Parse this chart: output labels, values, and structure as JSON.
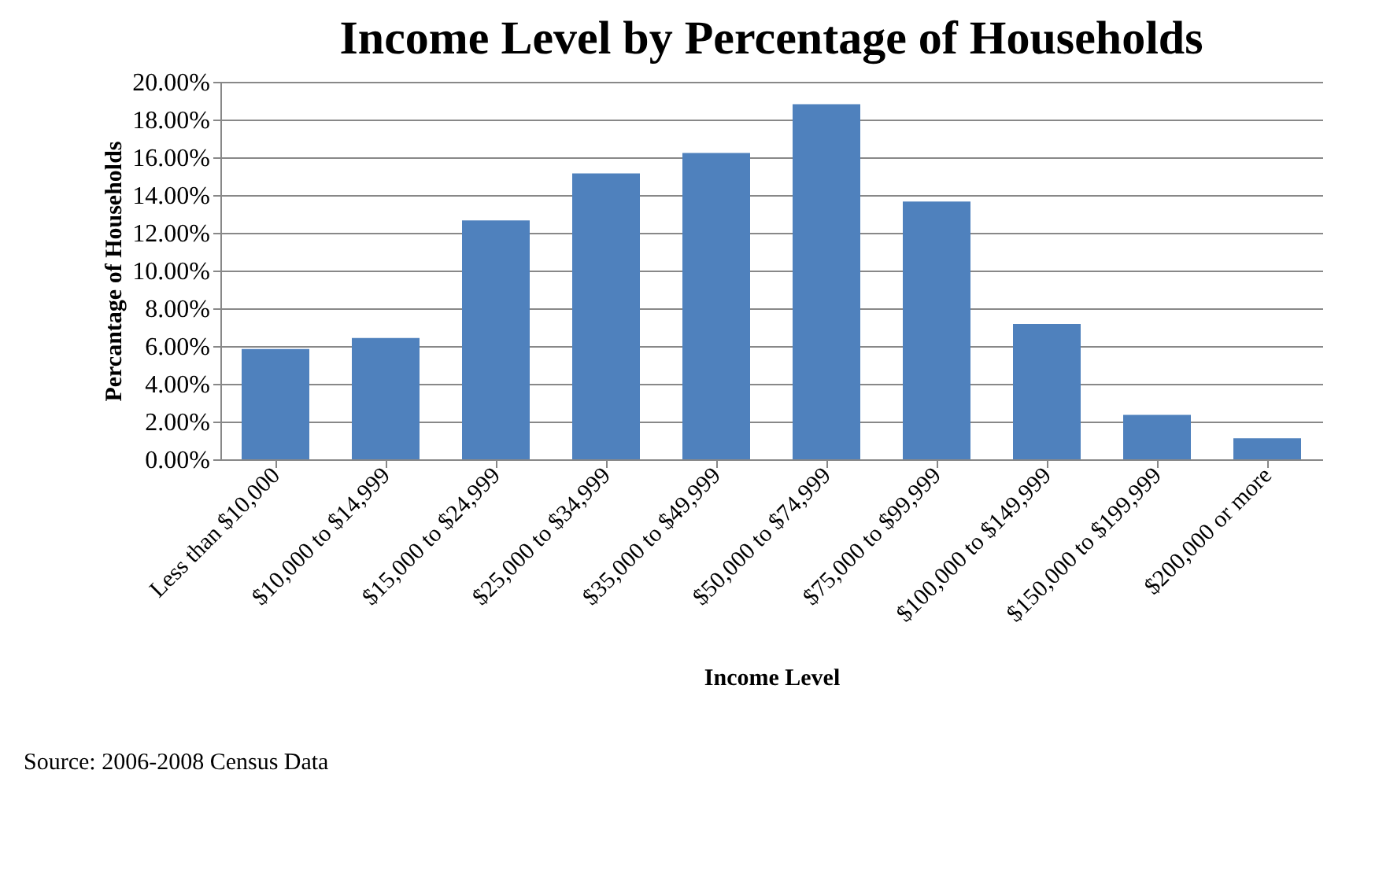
{
  "chart_data": {
    "type": "bar",
    "title": "Income Level by Percentage of Households",
    "xlabel": "Income Level",
    "ylabel": "Percantage of Households",
    "categories": [
      "Less than $10,000",
      "$10,000 to $14,999",
      "$15,000 to $24,999",
      "$25,000 to $34,999",
      "$35,000 to $49,999",
      "$50,000 to $74,999",
      "$75,000 to $99,999",
      "$100,000 to $149,999",
      "$150,000 to $199,999",
      "$200,000 or more"
    ],
    "values": [
      5.84,
      6.43,
      12.66,
      15.15,
      16.23,
      18.81,
      13.66,
      7.17,
      2.35,
      1.11
    ],
    "color": "#4f81bd",
    "ylim": [
      0,
      20
    ],
    "yticks": [
      {
        "value": 0,
        "label": "0.00%"
      },
      {
        "value": 2,
        "label": "2.00%"
      },
      {
        "value": 4,
        "label": "4.00%"
      },
      {
        "value": 6,
        "label": "6.00%"
      },
      {
        "value": 8,
        "label": "8.00%"
      },
      {
        "value": 10,
        "label": "10.00%"
      },
      {
        "value": 12,
        "label": "12.00%"
      },
      {
        "value": 14,
        "label": "14.00%"
      },
      {
        "value": 16,
        "label": "16.00%"
      },
      {
        "value": 18,
        "label": "18.00%"
      },
      {
        "value": 20,
        "label": "20.00%"
      }
    ],
    "grid": "y",
    "annotations": [
      "Source: 2006-2008 Census Data"
    ]
  }
}
